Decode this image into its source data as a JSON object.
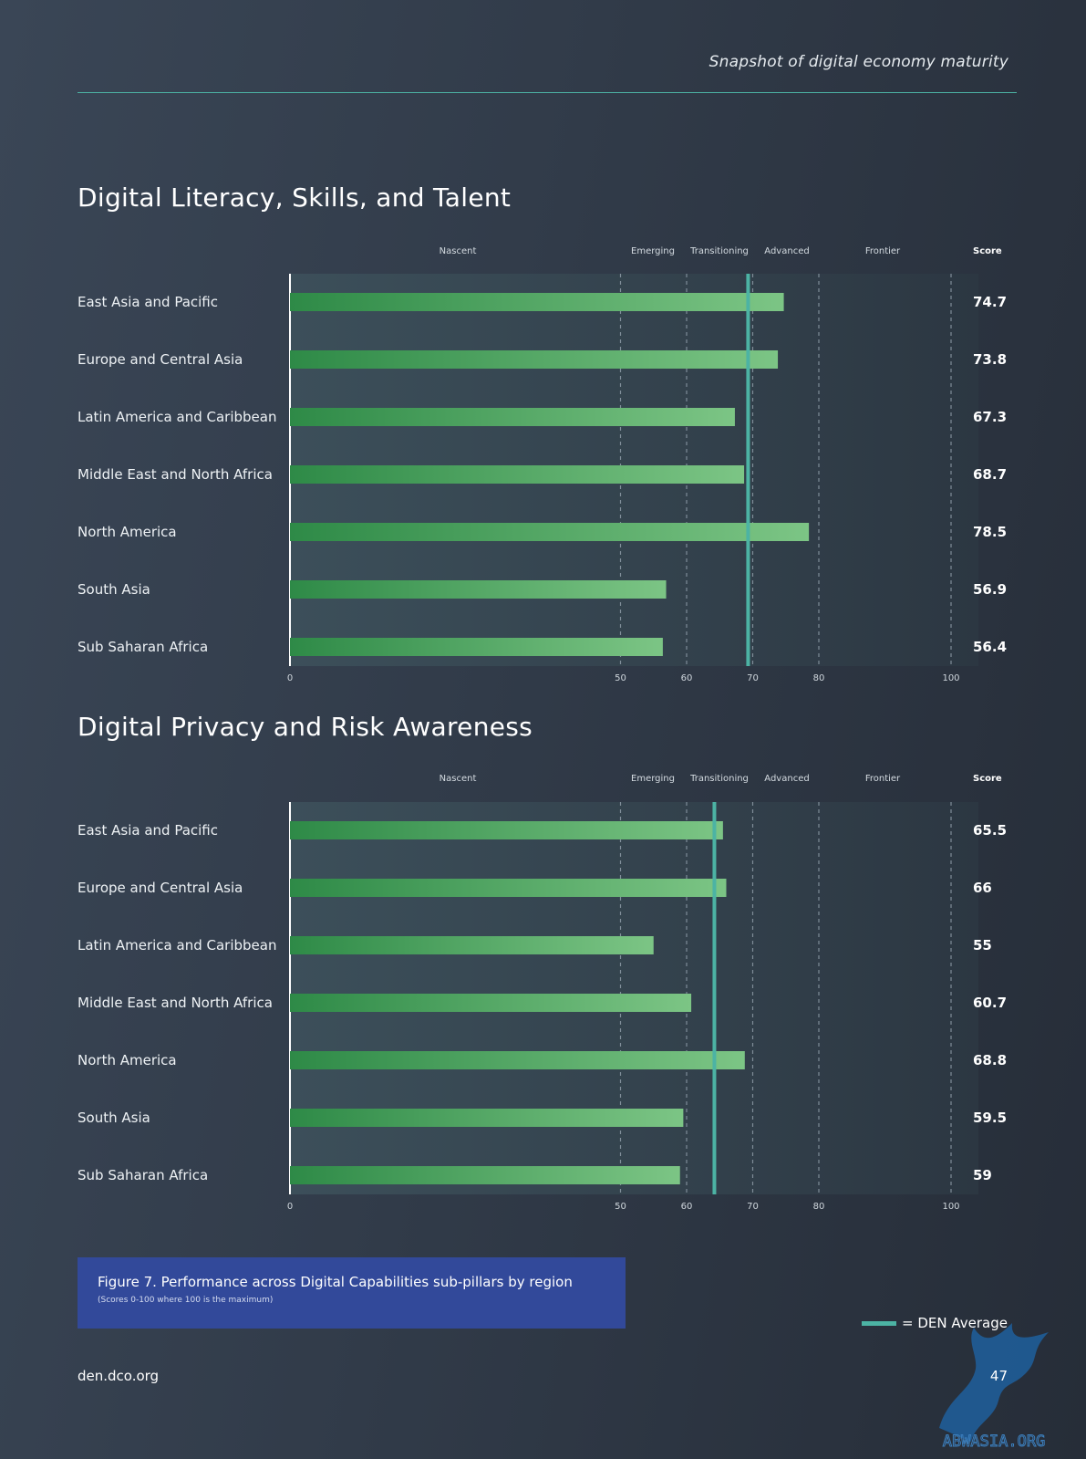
{
  "header": {
    "title": "Snapshot of digital economy maturity"
  },
  "stages": [
    "Nascent",
    "Emerging",
    "Transitioning",
    "Advanced",
    "Frontier"
  ],
  "score_header": "Score",
  "colors": {
    "accent": "#4cb3a4",
    "bar_start": "#2e8a47",
    "bar_end": "#7cc585",
    "caption_bg": "#32499a"
  },
  "chart_data": [
    {
      "type": "bar",
      "orientation": "horizontal",
      "title": "Digital Literacy, Skills, and Talent",
      "categories": [
        "East Asia and Pacific",
        "Europe and Central Asia",
        "Latin America and Caribbean",
        "Middle East and North Africa",
        "North America",
        "South Asia",
        "Sub Saharan Africa"
      ],
      "values": [
        74.7,
        73.8,
        67.3,
        68.7,
        78.5,
        56.9,
        56.4
      ],
      "value_labels": [
        "74.7",
        "73.8",
        "67.3",
        "68.7",
        "78.5",
        "56.9",
        "56.4"
      ],
      "den_average": 69.3,
      "xlim": [
        0,
        100
      ],
      "xticks": [
        "0",
        "50",
        "60",
        "70",
        "80",
        "100"
      ],
      "grid": true
    },
    {
      "type": "bar",
      "orientation": "horizontal",
      "title": "Digital Privacy and Risk Awareness",
      "categories": [
        "East Asia and Pacific",
        "Europe and Central Asia",
        "Latin America and Caribbean",
        "Middle East and North Africa",
        "North America",
        "South Asia",
        "Sub Saharan Africa"
      ],
      "values": [
        65.5,
        66,
        55,
        60.7,
        68.8,
        59.5,
        59
      ],
      "value_labels": [
        "65.5",
        "66",
        "55",
        "60.7",
        "68.8",
        "59.5",
        "59"
      ],
      "den_average": 64.2,
      "xlim": [
        0,
        100
      ],
      "xticks": [
        "0",
        "50",
        "60",
        "70",
        "80",
        "100"
      ],
      "grid": true
    }
  ],
  "caption": {
    "title": "Figure 7. Performance across Digital Capabilities sub-pillars by region",
    "subtitle": "(Scores 0-100 where 100 is the maximum)"
  },
  "legend": {
    "label": "= DEN Average"
  },
  "footer": {
    "url": "den.dco.org",
    "page": "47"
  },
  "watermark": {
    "text": "ABWASIA.ORG"
  }
}
